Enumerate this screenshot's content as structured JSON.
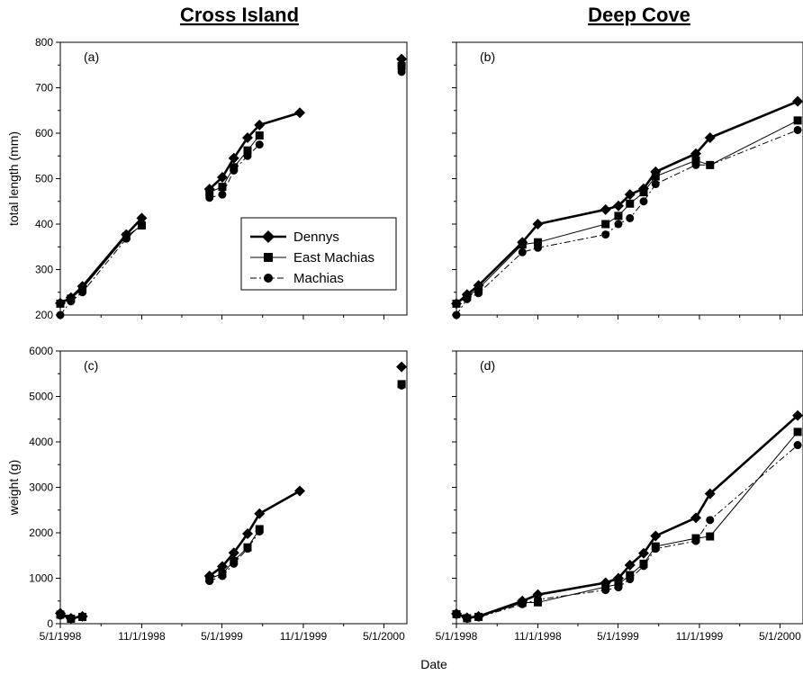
{
  "figure": {
    "col_titles": [
      "Cross Island",
      "Deep Cove"
    ],
    "xlabel": "Date",
    "x_tick_labels": [
      "5/1/1998",
      "11/1/1998",
      "5/1/1999",
      "11/1/1999",
      "5/1/2000"
    ],
    "legend": [
      "Dennys",
      "East Machias",
      "Machias"
    ],
    "colors": {
      "line": "#000000",
      "axis": "#000000",
      "background": "#ffffff"
    }
  },
  "chart_data": [
    {
      "type": "line",
      "panel_label": "(a)",
      "title": "Cross Island",
      "xlabel": "",
      "ylabel": "total length (mm)",
      "x_ticks": [
        "5/1/1998",
        "11/1/1998",
        "5/1/1999",
        "11/1/1999",
        "5/1/2000"
      ],
      "y_ticks": [
        200,
        300,
        400,
        500,
        600,
        700,
        800
      ],
      "ylim": [
        200,
        800
      ],
      "series": [
        {
          "name": "Dennys",
          "marker": "diamond",
          "line": "thick",
          "segments": [
            {
              "x": [
                "1998-05-01",
                "1998-05-25",
                "1998-06-20",
                "1998-09-27",
                "1998-11-01"
              ],
              "y": [
                226,
                238,
                263,
                377,
                413
              ]
            },
            {
              "x": [
                "1999-04-03",
                "1999-05-02",
                "1999-05-28",
                "1999-06-28",
                "1999-07-25",
                "1999-10-24"
              ],
              "y": [
                477,
                503,
                545,
                590,
                618,
                645
              ]
            },
            {
              "x": [
                "2000-06-10"
              ],
              "y": [
                763
              ]
            }
          ]
        },
        {
          "name": "East Machias",
          "marker": "square",
          "line": "thin",
          "segments": [
            {
              "x": [
                "1998-05-01",
                "1998-05-25",
                "1998-06-20",
                "1998-09-27",
                "1998-11-01"
              ],
              "y": [
                225,
                236,
                258,
                373,
                397
              ]
            },
            {
              "x": [
                "1999-04-03",
                "1999-05-02",
                "1999-05-28",
                "1999-06-28",
                "1999-07-25"
              ],
              "y": [
                470,
                482,
                525,
                562,
                595
              ]
            },
            {
              "x": [
                "2000-06-10"
              ],
              "y": [
                748
              ]
            }
          ]
        },
        {
          "name": "Machias",
          "marker": "circle",
          "line": "dash-dot",
          "segments": [
            {
              "x": [
                "1998-05-01",
                "1998-05-25",
                "1998-06-20",
                "1998-09-27",
                "1998-11-01"
              ],
              "y": [
                200,
                230,
                250,
                368,
                400
              ]
            },
            {
              "x": [
                "1999-04-03",
                "1999-05-02",
                "1999-05-28",
                "1999-06-28",
                "1999-07-25"
              ],
              "y": [
                458,
                465,
                518,
                550,
                575
              ]
            },
            {
              "x": [
                "2000-06-10"
              ],
              "y": [
                735
              ]
            }
          ]
        }
      ],
      "legend_position": "center-right"
    },
    {
      "type": "line",
      "panel_label": "(b)",
      "title": "Deep Cove",
      "xlabel": "",
      "ylabel": "",
      "x_ticks": [
        "5/1/1998",
        "11/1/1998",
        "5/1/1999",
        "11/1/1999",
        "5/1/2000"
      ],
      "y_ticks": [
        200,
        300,
        400,
        500,
        600,
        700,
        800
      ],
      "ylim": [
        200,
        800
      ],
      "series": [
        {
          "name": "Dennys",
          "marker": "diamond",
          "line": "thick",
          "segments": [
            {
              "x": [
                "1998-05-01",
                "1998-05-25",
                "1998-06-20",
                "1998-09-27",
                "1998-11-01",
                "1999-04-03",
                "1999-05-02",
                "1999-05-28",
                "1999-06-28",
                "1999-07-25",
                "1999-10-24",
                "1999-11-25",
                "2000-06-10"
              ],
              "y": [
                225,
                245,
                265,
                360,
                400,
                432,
                440,
                465,
                478,
                515,
                555,
                590,
                670
              ]
            }
          ]
        },
        {
          "name": "East Machias",
          "marker": "square",
          "line": "thin",
          "segments": [
            {
              "x": [
                "1998-05-01",
                "1998-05-25",
                "1998-06-20",
                "1998-09-27",
                "1998-11-01",
                "1999-04-03",
                "1999-05-02",
                "1999-05-28",
                "1999-06-28",
                "1999-07-25",
                "1999-10-24",
                "1999-11-25",
                "2000-06-10"
              ],
              "y": [
                225,
                240,
                258,
                355,
                360,
                400,
                418,
                445,
                470,
                505,
                540,
                530,
                628
              ]
            }
          ]
        },
        {
          "name": "Machias",
          "marker": "circle",
          "line": "dash-dot",
          "segments": [
            {
              "x": [
                "1998-05-01",
                "1998-05-25",
                "1998-06-20",
                "1998-09-27",
                "1998-11-01",
                "1999-04-03",
                "1999-05-02",
                "1999-05-28",
                "1999-06-28",
                "1999-07-25",
                "1999-10-24",
                "1999-11-25",
                "2000-06-10"
              ],
              "y": [
                200,
                235,
                248,
                338,
                348,
                377,
                400,
                413,
                450,
                488,
                530,
                530,
                607
              ]
            }
          ]
        }
      ]
    },
    {
      "type": "line",
      "panel_label": "(c)",
      "title": "",
      "xlabel": "",
      "ylabel": "weight (g)",
      "x_ticks": [
        "5/1/1998",
        "11/1/1998",
        "5/1/1999",
        "11/1/1999",
        "5/1/2000"
      ],
      "y_ticks": [
        0,
        1000,
        2000,
        3000,
        4000,
        5000,
        6000
      ],
      "ylim": [
        0,
        6000
      ],
      "series": [
        {
          "name": "Dennys",
          "marker": "diamond",
          "line": "thick",
          "segments": [
            {
              "x": [
                "1998-05-01",
                "1998-05-25",
                "1998-06-20"
              ],
              "y": [
                230,
                120,
                160
              ]
            },
            {
              "x": [
                "1999-04-03",
                "1999-05-02",
                "1999-05-28",
                "1999-06-28",
                "1999-07-25",
                "1999-10-24"
              ],
              "y": [
                1050,
                1260,
                1560,
                1980,
                2420,
                2920
              ]
            },
            {
              "x": [
                "2000-06-10"
              ],
              "y": [
                5650
              ]
            }
          ]
        },
        {
          "name": "East Machias",
          "marker": "square",
          "line": "thin",
          "segments": [
            {
              "x": [
                "1998-05-01",
                "1998-05-25",
                "1998-06-20"
              ],
              "y": [
                200,
                110,
                150
              ]
            },
            {
              "x": [
                "1999-04-03",
                "1999-05-02",
                "1999-05-28",
                "1999-06-28",
                "1999-07-25"
              ],
              "y": [
                990,
                1100,
                1380,
                1680,
                2080
              ]
            },
            {
              "x": [
                "2000-06-10"
              ],
              "y": [
                5270
              ]
            }
          ]
        },
        {
          "name": "Machias",
          "marker": "circle",
          "line": "dash-dot",
          "segments": [
            {
              "x": [
                "1998-05-01",
                "1998-05-25",
                "1998-06-20"
              ],
              "y": [
                180,
                105,
                145
              ]
            },
            {
              "x": [
                "1999-04-03",
                "1999-05-02",
                "1999-05-28",
                "1999-06-28",
                "1999-07-25"
              ],
              "y": [
                940,
                1050,
                1320,
                1650,
                2030
              ]
            },
            {
              "x": [
                "2000-06-10"
              ],
              "y": [
                5240
              ]
            }
          ]
        }
      ]
    },
    {
      "type": "line",
      "panel_label": "(d)",
      "title": "",
      "xlabel": "",
      "ylabel": "",
      "x_ticks": [
        "5/1/1998",
        "11/1/1998",
        "5/1/1999",
        "11/1/1999",
        "5/1/2000"
      ],
      "y_ticks": [
        0,
        1000,
        2000,
        3000,
        4000,
        5000,
        6000
      ],
      "ylim": [
        0,
        6000
      ],
      "series": [
        {
          "name": "Dennys",
          "marker": "diamond",
          "line": "thick",
          "segments": [
            {
              "x": [
                "1998-05-01",
                "1998-05-25",
                "1998-06-20",
                "1998-09-27",
                "1998-11-01",
                "1999-04-03",
                "1999-05-02",
                "1999-05-28",
                "1999-06-28",
                "1999-07-25",
                "1999-10-24",
                "1999-11-25",
                "2000-06-10"
              ],
              "y": [
                220,
                130,
                160,
                500,
                640,
                900,
                1000,
                1290,
                1550,
                1930,
                2330,
                2860,
                4580
              ]
            }
          ]
        },
        {
          "name": "East Machias",
          "marker": "square",
          "line": "thin",
          "segments": [
            {
              "x": [
                "1998-05-01",
                "1998-05-25",
                "1998-06-20",
                "1998-09-27",
                "1998-11-01",
                "1999-04-03",
                "1999-05-02",
                "1999-05-28",
                "1999-06-28",
                "1999-07-25",
                "1999-10-24",
                "1999-11-25",
                "2000-06-10"
              ],
              "y": [
                210,
                120,
                150,
                460,
                470,
                810,
                870,
                1070,
                1320,
                1700,
                1880,
                1920,
                4220
              ]
            }
          ]
        },
        {
          "name": "Machias",
          "marker": "circle",
          "line": "dash-dot",
          "segments": [
            {
              "x": [
                "1998-05-01",
                "1998-05-25",
                "1998-06-20",
                "1998-09-27",
                "1998-11-01",
                "1999-04-03",
                "1999-05-02",
                "1999-05-28",
                "1999-06-28",
                "1999-07-25",
                "1999-10-24",
                "1999-11-25",
                "2000-06-10"
              ],
              "y": [
                200,
                110,
                140,
                430,
                530,
                740,
                800,
                980,
                1270,
                1650,
                1820,
                2280,
                3930
              ]
            }
          ]
        }
      ]
    }
  ]
}
